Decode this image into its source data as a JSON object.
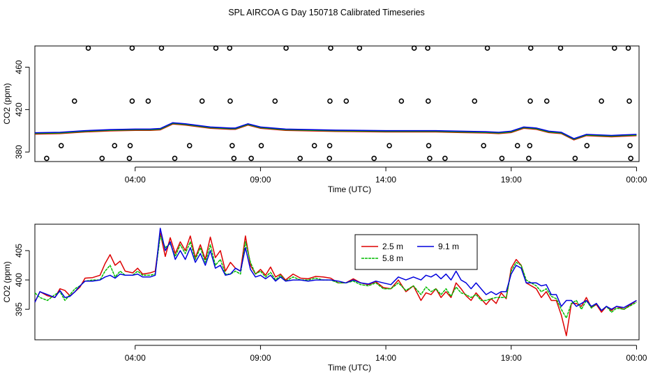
{
  "title": "SPL AIRCOA G  Day 150718  Calibrated Timeseries",
  "chart_data": [
    {
      "type": "line",
      "panel": "top",
      "xlabel": "Time (UTC)",
      "ylabel": "CO2 (ppm)",
      "xlim": [
        0,
        24.1
      ],
      "ylim": [
        371,
        480
      ],
      "xticks": [
        {
          "v": 4,
          "label": "04:00"
        },
        {
          "v": 9,
          "label": "09:00"
        },
        {
          "v": 14,
          "label": "14:00"
        },
        {
          "v": 19,
          "label": "19:00"
        },
        {
          "v": 24,
          "label": "00:00"
        }
      ],
      "yticks": [
        {
          "v": 380,
          "label": "380"
        },
        {
          "v": 420,
          "label": "420"
        },
        {
          "v": 460,
          "label": "460"
        }
      ],
      "series": [
        {
          "name": "2.5 m",
          "color": "#dd0000"
        },
        {
          "name": "5.8 m",
          "color": "#00bb00"
        },
        {
          "name": "9.1 m",
          "color": "#0000dd"
        }
      ],
      "reference_points": [
        {
          "x": 2.13,
          "y": 478
        },
        {
          "x": 3.88,
          "y": 478
        },
        {
          "x": 5.05,
          "y": 478
        },
        {
          "x": 7.22,
          "y": 478
        },
        {
          "x": 7.77,
          "y": 478
        },
        {
          "x": 10.02,
          "y": 478
        },
        {
          "x": 11.8,
          "y": 478
        },
        {
          "x": 12.95,
          "y": 478
        },
        {
          "x": 15.13,
          "y": 478
        },
        {
          "x": 15.67,
          "y": 478
        },
        {
          "x": 18.05,
          "y": 478
        },
        {
          "x": 19.78,
          "y": 478
        },
        {
          "x": 20.97,
          "y": 478
        },
        {
          "x": 23.12,
          "y": 478
        },
        {
          "x": 23.67,
          "y": 478
        },
        {
          "x": 1.58,
          "y": 428
        },
        {
          "x": 3.88,
          "y": 428
        },
        {
          "x": 4.52,
          "y": 428
        },
        {
          "x": 6.67,
          "y": 428
        },
        {
          "x": 7.79,
          "y": 428
        },
        {
          "x": 9.58,
          "y": 428
        },
        {
          "x": 11.77,
          "y": 428
        },
        {
          "x": 12.42,
          "y": 428
        },
        {
          "x": 14.62,
          "y": 428
        },
        {
          "x": 15.69,
          "y": 428
        },
        {
          "x": 17.54,
          "y": 428
        },
        {
          "x": 19.76,
          "y": 428
        },
        {
          "x": 20.42,
          "y": 428
        },
        {
          "x": 22.6,
          "y": 428
        },
        {
          "x": 23.71,
          "y": 428
        },
        {
          "x": 1.05,
          "y": 386
        },
        {
          "x": 3.18,
          "y": 386
        },
        {
          "x": 3.8,
          "y": 386
        },
        {
          "x": 6.17,
          "y": 386
        },
        {
          "x": 7.87,
          "y": 386
        },
        {
          "x": 9.03,
          "y": 386
        },
        {
          "x": 11.15,
          "y": 386
        },
        {
          "x": 11.76,
          "y": 386
        },
        {
          "x": 14.14,
          "y": 386
        },
        {
          "x": 15.71,
          "y": 386
        },
        {
          "x": 17.9,
          "y": 386
        },
        {
          "x": 19.25,
          "y": 386
        },
        {
          "x": 19.74,
          "y": 386
        },
        {
          "x": 22.02,
          "y": 386
        },
        {
          "x": 23.74,
          "y": 386
        },
        {
          "x": 0.47,
          "y": 374
        },
        {
          "x": 2.68,
          "y": 374
        },
        {
          "x": 3.77,
          "y": 374
        },
        {
          "x": 5.58,
          "y": 374
        },
        {
          "x": 7.94,
          "y": 374
        },
        {
          "x": 8.63,
          "y": 374
        },
        {
          "x": 10.58,
          "y": 374
        },
        {
          "x": 11.75,
          "y": 374
        },
        {
          "x": 13.53,
          "y": 374
        },
        {
          "x": 15.75,
          "y": 374
        },
        {
          "x": 16.36,
          "y": 374
        },
        {
          "x": 18.63,
          "y": 374
        },
        {
          "x": 19.7,
          "y": 374
        },
        {
          "x": 21.55,
          "y": 374
        },
        {
          "x": 23.77,
          "y": 374
        }
      ]
    },
    {
      "type": "line",
      "panel": "bottom",
      "xlabel": "Time (UTC)",
      "ylabel": "CO2 (ppm)",
      "xlim": [
        0,
        24.1
      ],
      "ylim": [
        389.8,
        409.5
      ],
      "xticks": [
        {
          "v": 4,
          "label": "04:00"
        },
        {
          "v": 9,
          "label": "09:00"
        },
        {
          "v": 14,
          "label": "14:00"
        },
        {
          "v": 19,
          "label": "19:00"
        },
        {
          "v": 24,
          "label": "00:00"
        }
      ],
      "yticks": [
        {
          "v": 395,
          "label": "395"
        },
        {
          "v": 400,
          "label": "400"
        },
        {
          "v": 405,
          "label": "405"
        }
      ],
      "legend": {
        "position": "top-center",
        "entries": [
          "2.5 m",
          "5.8 m",
          "9.1 m"
        ]
      },
      "series": [
        {
          "name": "2.5 m",
          "color": "#dd0000",
          "x": [
            0,
            0.2,
            0.5,
            0.8,
            1.0,
            1.2,
            1.4,
            1.6,
            1.8,
            2.0,
            2.3,
            2.6,
            2.8,
            3.0,
            3.2,
            3.4,
            3.6,
            3.9,
            4.1,
            4.3,
            4.6,
            4.8,
            5.0,
            5.2,
            5.4,
            5.6,
            5.8,
            6.0,
            6.2,
            6.4,
            6.6,
            6.8,
            7.0,
            7.2,
            7.4,
            7.6,
            7.8,
            8.0,
            8.2,
            8.4,
            8.6,
            8.8,
            9.0,
            9.2,
            9.4,
            9.6,
            9.8,
            10.0,
            10.3,
            10.6,
            10.9,
            11.2,
            11.5,
            11.8,
            12.1,
            12.4,
            12.7,
            13.0,
            13.3,
            13.6,
            13.9,
            14.2,
            14.5,
            14.8,
            15.1,
            15.4,
            15.6,
            15.8,
            16.0,
            16.2,
            16.4,
            16.6,
            16.8,
            17.0,
            17.2,
            17.4,
            17.6,
            17.8,
            18.0,
            18.2,
            18.4,
            18.6,
            18.8,
            19.0,
            19.2,
            19.4,
            19.6,
            19.8,
            20.0,
            20.2,
            20.4,
            20.6,
            20.8,
            21.0,
            21.2,
            21.4,
            21.6,
            21.8,
            22.0,
            22.2,
            22.4,
            22.6,
            22.8,
            23.0,
            23.2,
            23.5,
            24.0
          ],
          "values": [
            396.2,
            398.0,
            397.3,
            397.0,
            398.5,
            398.2,
            397.3,
            398.0,
            398.8,
            400.3,
            400.4,
            400.8,
            402.8,
            404.3,
            402.5,
            403.2,
            401.5,
            401.2,
            402.0,
            401.0,
            401.2,
            401.5,
            408.0,
            404.0,
            407.2,
            404.5,
            406.5,
            405.0,
            407.5,
            403.8,
            406.0,
            403.5,
            407.3,
            403.8,
            405.0,
            401.5,
            403.0,
            402.0,
            401.5,
            407.5,
            402.5,
            401.0,
            401.8,
            400.8,
            402.2,
            400.5,
            401.0,
            400.0,
            401.0,
            400.3,
            400.2,
            400.6,
            400.5,
            400.3,
            399.5,
            399.5,
            400.2,
            399.5,
            399.2,
            399.7,
            398.7,
            398.5,
            400.0,
            398.0,
            399.0,
            396.5,
            397.8,
            397.5,
            398.5,
            397.0,
            398.0,
            397.0,
            399.5,
            398.5,
            397.3,
            396.5,
            397.8,
            396.8,
            395.8,
            396.8,
            396.0,
            397.8,
            396.8,
            402.0,
            403.5,
            402.5,
            399.5,
            399.0,
            398.5,
            397.0,
            398.0,
            396.5,
            396.5,
            394.0,
            390.5,
            396.0,
            396.0,
            395.5,
            397.0,
            395.3,
            395.8,
            394.5,
            395.5,
            394.8,
            395.5,
            395.0,
            396.5
          ]
        },
        {
          "name": "5.8 m",
          "color": "#00bb00",
          "x": [
            0,
            0.2,
            0.5,
            0.8,
            1.0,
            1.2,
            1.4,
            1.6,
            1.8,
            2.0,
            2.3,
            2.6,
            2.8,
            3.0,
            3.2,
            3.4,
            3.6,
            3.9,
            4.1,
            4.3,
            4.6,
            4.8,
            5.0,
            5.2,
            5.4,
            5.6,
            5.8,
            6.0,
            6.2,
            6.4,
            6.6,
            6.8,
            7.0,
            7.2,
            7.4,
            7.6,
            7.8,
            8.0,
            8.2,
            8.4,
            8.6,
            8.8,
            9.0,
            9.2,
            9.4,
            9.6,
            9.8,
            10.0,
            10.3,
            10.6,
            10.9,
            11.2,
            11.5,
            11.8,
            12.1,
            12.4,
            12.7,
            13.0,
            13.3,
            13.6,
            13.9,
            14.2,
            14.5,
            14.8,
            15.1,
            15.4,
            15.6,
            15.8,
            16.0,
            16.2,
            16.4,
            16.6,
            16.8,
            17.0,
            17.2,
            17.4,
            17.6,
            17.8,
            18.0,
            18.2,
            18.4,
            18.6,
            18.8,
            19.0,
            19.2,
            19.4,
            19.6,
            19.8,
            20.0,
            20.2,
            20.4,
            20.6,
            20.8,
            21.0,
            21.2,
            21.4,
            21.6,
            21.8,
            22.0,
            22.2,
            22.4,
            22.6,
            22.8,
            23.0,
            23.2,
            23.5,
            24.0
          ],
          "values": [
            397.8,
            397.0,
            396.5,
            397.5,
            398.0,
            396.5,
            397.5,
            398.5,
            399.0,
            399.8,
            400.0,
            400.0,
            401.5,
            402.5,
            400.5,
            401.5,
            400.8,
            400.8,
            401.5,
            400.8,
            400.8,
            401.0,
            407.5,
            405.5,
            406.2,
            404.0,
            406.0,
            404.5,
            406.5,
            403.5,
            405.5,
            403.0,
            406.0,
            402.5,
            403.5,
            401.0,
            401.0,
            401.5,
            401.0,
            406.5,
            403.0,
            401.0,
            401.5,
            400.5,
            401.3,
            400.0,
            400.8,
            399.8,
            400.5,
            400.0,
            400.0,
            400.3,
            400.0,
            400.0,
            399.5,
            399.5,
            399.8,
            399.2,
            399.0,
            399.5,
            398.5,
            398.5,
            399.5,
            398.2,
            399.0,
            397.5,
            398.8,
            398.0,
            398.5,
            397.5,
            398.5,
            397.2,
            398.8,
            397.8,
            397.5,
            397.0,
            397.5,
            396.5,
            396.5,
            396.8,
            397.0,
            397.0,
            397.0,
            401.5,
            403.0,
            402.5,
            400.0,
            399.5,
            399.0,
            398.0,
            398.5,
            397.2,
            396.8,
            395.0,
            393.5,
            396.0,
            396.5,
            395.0,
            396.5,
            395.2,
            396.0,
            394.8,
            395.5,
            394.5,
            395.2,
            395.0,
            396.2
          ]
        },
        {
          "name": "9.1 m",
          "color": "#0000dd",
          "x": [
            0,
            0.2,
            0.5,
            0.8,
            1.0,
            1.2,
            1.4,
            1.6,
            1.8,
            2.0,
            2.3,
            2.6,
            2.8,
            3.0,
            3.2,
            3.4,
            3.6,
            3.9,
            4.1,
            4.3,
            4.6,
            4.8,
            5.0,
            5.2,
            5.4,
            5.6,
            5.8,
            6.0,
            6.2,
            6.4,
            6.6,
            6.8,
            7.0,
            7.2,
            7.4,
            7.6,
            7.8,
            8.0,
            8.2,
            8.4,
            8.6,
            8.8,
            9.0,
            9.2,
            9.4,
            9.6,
            9.8,
            10.0,
            10.3,
            10.6,
            10.9,
            11.2,
            11.5,
            11.8,
            12.1,
            12.4,
            12.7,
            13.0,
            13.3,
            13.6,
            13.9,
            14.2,
            14.5,
            14.8,
            15.1,
            15.4,
            15.6,
            15.8,
            16.0,
            16.2,
            16.4,
            16.6,
            16.8,
            17.0,
            17.2,
            17.4,
            17.6,
            17.8,
            18.0,
            18.2,
            18.4,
            18.6,
            18.8,
            19.0,
            19.2,
            19.4,
            19.6,
            19.8,
            20.0,
            20.2,
            20.4,
            20.6,
            20.8,
            21.0,
            21.2,
            21.4,
            21.6,
            21.8,
            22.0,
            22.2,
            22.4,
            22.6,
            22.8,
            23.0,
            23.2,
            23.5,
            24.0
          ],
          "values": [
            396.2,
            398.0,
            397.5,
            397.0,
            398.2,
            397.0,
            397.2,
            398.0,
            399.0,
            399.8,
            399.8,
            400.0,
            400.5,
            400.8,
            400.3,
            401.0,
            400.8,
            400.8,
            401.0,
            400.5,
            400.5,
            400.8,
            408.8,
            405.0,
            406.5,
            403.5,
            405.0,
            403.5,
            405.5,
            403.0,
            404.5,
            402.5,
            405.0,
            402.0,
            402.5,
            400.8,
            401.0,
            402.0,
            401.5,
            405.5,
            401.8,
            400.5,
            400.8,
            400.2,
            400.8,
            399.8,
            400.5,
            399.8,
            400.0,
            400.0,
            399.8,
            400.0,
            400.0,
            400.0,
            399.8,
            399.5,
            400.0,
            399.5,
            399.3,
            399.8,
            399.5,
            399.2,
            400.5,
            400.0,
            400.5,
            400.0,
            400.8,
            400.5,
            401.0,
            400.2,
            401.0,
            400.0,
            401.5,
            400.0,
            399.5,
            398.5,
            399.5,
            398.5,
            397.5,
            398.0,
            397.5,
            398.0,
            398.0,
            401.0,
            402.5,
            402.0,
            399.5,
            399.5,
            399.5,
            399.0,
            399.2,
            397.5,
            397.5,
            395.5,
            396.5,
            396.5,
            395.5,
            396.0,
            396.5,
            395.5,
            396.0,
            394.8,
            395.5,
            395.0,
            395.5,
            395.3,
            396.5
          ]
        }
      ]
    }
  ]
}
